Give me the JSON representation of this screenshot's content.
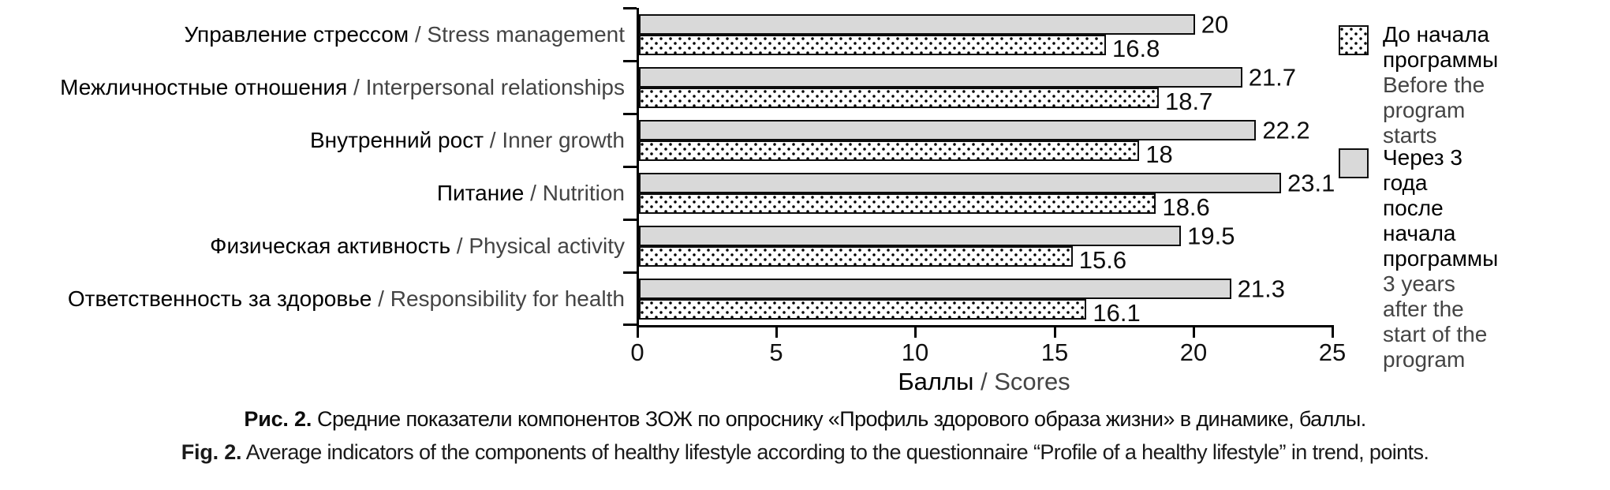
{
  "labels_separator": " / ",
  "colors": {
    "bar_after_fill": "#d9d9d9",
    "bar_border": "#0d0d0d",
    "dot_pattern": "#000000",
    "ru_text": "#000000",
    "en_text": "#444444"
  },
  "chart_data": {
    "type": "bar",
    "orientation": "horizontal",
    "title": "",
    "xlabel_ru": "Баллы",
    "xlabel_en": "Scores",
    "xlim": [
      0,
      25
    ],
    "x_ticks": [
      "0",
      "5",
      "10",
      "15",
      "20",
      "25"
    ],
    "grid": false,
    "legend_position": "right",
    "categories": [
      {
        "ru": "Управление стрессом",
        "en": "Stress management"
      },
      {
        "ru": "Межличностные отношения",
        "en": "Interpersonal relationships"
      },
      {
        "ru": "Внутренний рост",
        "en": "Inner growth"
      },
      {
        "ru": "Питание",
        "en": "Nutrition"
      },
      {
        "ru": "Физическая активность",
        "en": "Physical activity"
      },
      {
        "ru": "Ответственность за здоровье",
        "en": "Responsibility for health"
      }
    ],
    "series": [
      {
        "name_ru": "До начала программы",
        "name_en": "Before the program starts",
        "pattern": "dotted",
        "values": [
          16.8,
          18.7,
          18,
          18.6,
          15.6,
          16.1
        ]
      },
      {
        "name_ru": "Через 3 года после начала программы",
        "name_en": "3 years after the start of the program",
        "pattern": "gray",
        "values": [
          20,
          21.7,
          22.2,
          23.1,
          19.5,
          21.3
        ]
      }
    ],
    "rows": [
      {
        "label_ru": "Управление стрессом",
        "label_en": "Stress management",
        "after": 20,
        "after_label": "20",
        "before": 16.8,
        "before_label": "16.8"
      },
      {
        "label_ru": "Межличностные отношения",
        "label_en": "Interpersonal relationships",
        "after": 21.7,
        "after_label": "21.7",
        "before": 18.7,
        "before_label": "18.7"
      },
      {
        "label_ru": "Внутренний рост",
        "label_en": "Inner growth",
        "after": 22.2,
        "after_label": "22.2",
        "before": 18,
        "before_label": "18"
      },
      {
        "label_ru": "Питание",
        "label_en": "Nutrition",
        "after": 23.1,
        "after_label": "23.1",
        "before": 18.6,
        "before_label": "18.6"
      },
      {
        "label_ru": "Физическая активность",
        "label_en": "Physical activity",
        "after": 19.5,
        "after_label": "19.5",
        "before": 15.6,
        "before_label": "15.6"
      },
      {
        "label_ru": "Ответственность за здоровье",
        "label_en": "Responsibility for health",
        "after": 21.3,
        "after_label": "21.3",
        "before": 16.1,
        "before_label": "16.1"
      }
    ]
  },
  "legend": {
    "items": [
      {
        "swatch": "dotted",
        "ru_lines": [
          "До начала",
          "программы"
        ],
        "en_lines": [
          "Before the program",
          "starts"
        ]
      },
      {
        "swatch": "gray",
        "ru_lines": [
          "Через 3 года",
          "после начала",
          "программы"
        ],
        "en_lines": [
          "3 years after the",
          "start of the program"
        ]
      }
    ]
  },
  "caption": {
    "ru_prefix": "Рис. 2.",
    "ru_text": " Средние показатели компонентов ЗОЖ по опроснику «Профиль здорового образа жизни» в динамике, баллы.",
    "en_prefix": "Fig. 2.",
    "en_text": " Average indicators of the components of healthy lifestyle according to the questionnaire “Profile of a healthy lifestyle” in trend, points."
  }
}
